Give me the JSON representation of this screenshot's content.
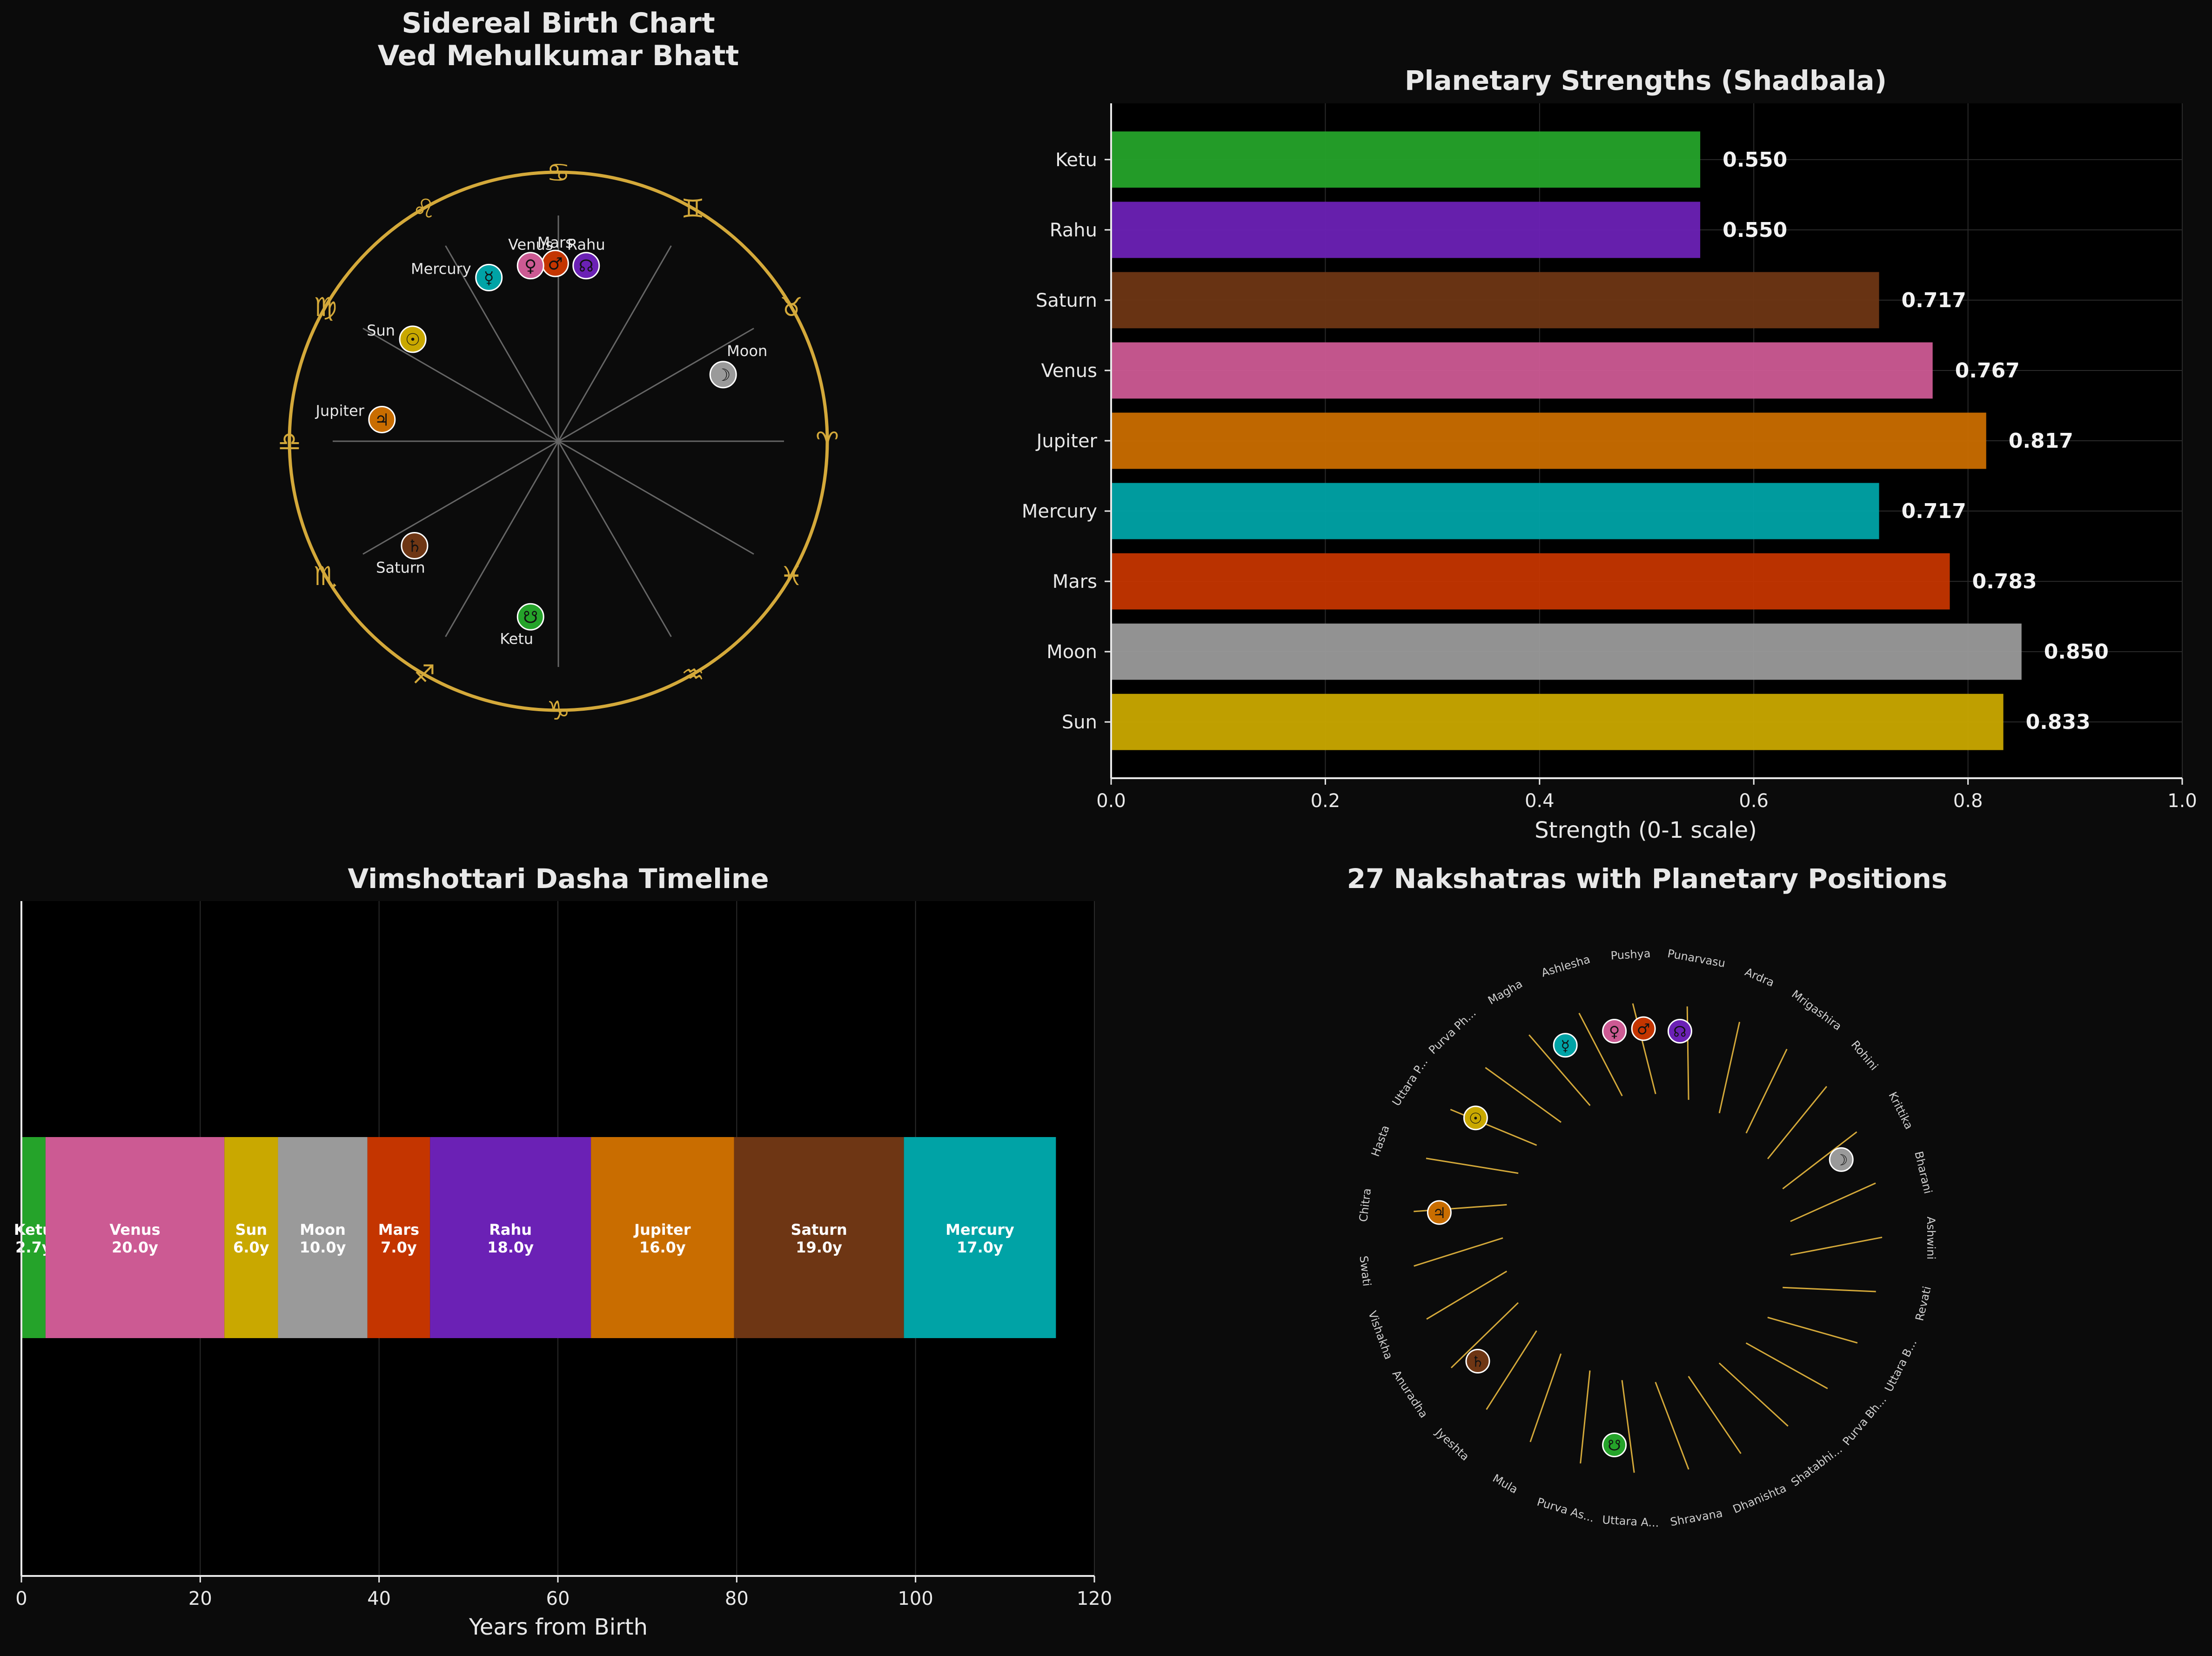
{
  "colors": {
    "figure_bg": "#0b0b0b",
    "axes_bg": "#000000",
    "gold": "#d4a93a",
    "text": "#e8e8e8",
    "grid": "#2a2a2a",
    "Sun": "#c9a800",
    "Moon": "#9a9a9a",
    "Mars": "#c43500",
    "Mercury": "#00a3a6",
    "Jupiter": "#c96d00",
    "Venus": "#cc5a93",
    "Saturn": "#6e3614",
    "Rahu": "#6b21b5",
    "Ketu": "#25a32a"
  },
  "chart_data": [
    {
      "type": "polar",
      "title_line1": "Sidereal Birth Chart",
      "title_line2": "Ved Mehulkumar Bhatt",
      "signs": [
        {
          "glyph": "♈",
          "angle_deg": 0
        },
        {
          "glyph": "♉",
          "angle_deg": 30
        },
        {
          "glyph": "♊",
          "angle_deg": 60
        },
        {
          "glyph": "♋",
          "angle_deg": 90
        },
        {
          "glyph": "♌",
          "angle_deg": 120
        },
        {
          "glyph": "♍",
          "angle_deg": 150
        },
        {
          "glyph": "♎",
          "angle_deg": 180
        },
        {
          "glyph": "♏",
          "angle_deg": 210
        },
        {
          "glyph": "♐",
          "angle_deg": 240
        },
        {
          "glyph": "♑",
          "angle_deg": 270
        },
        {
          "glyph": "♒",
          "angle_deg": 300
        },
        {
          "glyph": "♓",
          "angle_deg": 330
        }
      ],
      "planets": [
        {
          "name": "Sun",
          "glyph": "☉",
          "longitude_deg": 145,
          "label_side": "top-left"
        },
        {
          "name": "Moon",
          "glyph": "☽",
          "longitude_deg": 22,
          "label_side": "top-right"
        },
        {
          "name": "Mars",
          "glyph": "♂",
          "longitude_deg": 91,
          "label_side": "top"
        },
        {
          "name": "Mercury",
          "glyph": "☿",
          "longitude_deg": 113,
          "label_side": "top-left"
        },
        {
          "name": "Jupiter",
          "glyph": "♃",
          "longitude_deg": 173,
          "label_side": "top-left"
        },
        {
          "name": "Venus",
          "glyph": "♀",
          "longitude_deg": 99,
          "label_side": "top"
        },
        {
          "name": "Saturn",
          "glyph": "♄",
          "longitude_deg": 216,
          "label_side": "bottom"
        },
        {
          "name": "Rahu",
          "glyph": "☊",
          "longitude_deg": 81,
          "label_side": "top"
        },
        {
          "name": "Ketu",
          "glyph": "☋",
          "longitude_deg": 261,
          "label_side": "bottom"
        }
      ]
    },
    {
      "type": "bar",
      "orientation": "horizontal",
      "title": "Planetary Strengths (Shadbala)",
      "xlabel": "Strength (0-1 scale)",
      "xlim": [
        0,
        1
      ],
      "xticks": [
        "0.0",
        "0.2",
        "0.4",
        "0.6",
        "0.8",
        "1.0"
      ],
      "grid": true,
      "categories": [
        "Sun",
        "Moon",
        "Mars",
        "Mercury",
        "Jupiter",
        "Venus",
        "Saturn",
        "Rahu",
        "Ketu"
      ],
      "values": [
        0.833,
        0.85,
        0.783,
        0.717,
        0.817,
        0.767,
        0.717,
        0.55,
        0.55
      ],
      "value_labels": [
        "0.833",
        "0.850",
        "0.783",
        "0.717",
        "0.817",
        "0.767",
        "0.717",
        "0.550",
        "0.550"
      ]
    },
    {
      "type": "bar",
      "orientation": "stacked-horizontal",
      "title": "Vimshottari Dasha Timeline",
      "xlabel": "Years from Birth",
      "xlim": [
        0,
        120
      ],
      "xticks": [
        "0",
        "20",
        "40",
        "60",
        "80",
        "100",
        "120"
      ],
      "grid": true,
      "segments": [
        {
          "name": "Ketu",
          "years": 2.7,
          "label": "2.7y"
        },
        {
          "name": "Venus",
          "years": 20.0,
          "label": "20.0y"
        },
        {
          "name": "Sun",
          "years": 6.0,
          "label": "6.0y"
        },
        {
          "name": "Moon",
          "years": 10.0,
          "label": "10.0y"
        },
        {
          "name": "Mars",
          "years": 7.0,
          "label": "7.0y"
        },
        {
          "name": "Rahu",
          "years": 18.0,
          "label": "18.0y"
        },
        {
          "name": "Jupiter",
          "years": 16.0,
          "label": "16.0y"
        },
        {
          "name": "Saturn",
          "years": 19.0,
          "label": "19.0y"
        },
        {
          "name": "Mercury",
          "years": 17.0,
          "label": "17.0y"
        }
      ]
    },
    {
      "type": "polar",
      "title": "27 Nakshatras with Planetary Positions",
      "nakshatras": [
        "Ashwini",
        "Bharani",
        "Krittika",
        "Rohini",
        "Mrigashira",
        "Ardra",
        "Punarvasu",
        "Pushya",
        "Ashlesha",
        "Magha",
        "Purva Ph...",
        "Uttara P...",
        "Hasta",
        "Chitra",
        "Swati",
        "Vishakha",
        "Anuradha",
        "Jyeshta",
        "Mula",
        "Purva As...",
        "Uttara A...",
        "Shravana",
        "Dhanishta",
        "Shatabhi...",
        "Purva Bh...",
        "Uttara B...",
        "Revati"
      ]
    }
  ]
}
